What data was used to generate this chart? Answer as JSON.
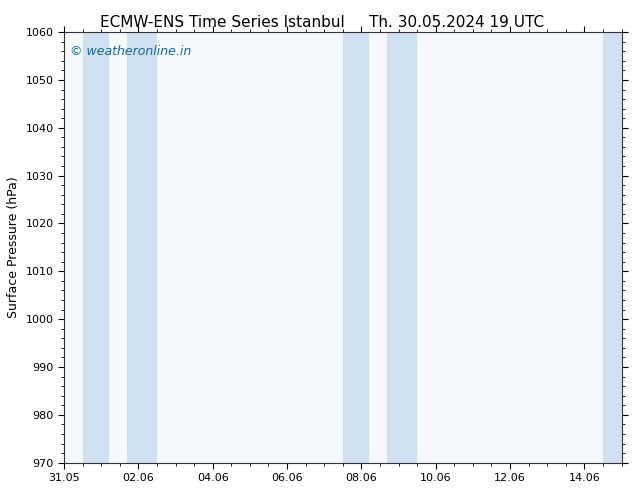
{
  "title_left": "ECMW-ENS Time Series Istanbul",
  "title_right": "Th. 30.05.2024 19 UTC",
  "ylabel": "Surface Pressure (hPa)",
  "ylim": [
    970,
    1060
  ],
  "yticks": [
    970,
    980,
    990,
    1000,
    1010,
    1020,
    1030,
    1040,
    1050,
    1060
  ],
  "xtick_labels": [
    "31.05",
    "02.06",
    "04.06",
    "06.06",
    "08.06",
    "10.06",
    "12.06",
    "14.06"
  ],
  "xtick_positions_days": [
    0,
    2,
    4,
    6,
    8,
    10,
    12,
    14
  ],
  "total_days": 15,
  "shaded_bands": [
    {
      "start_day": 0.5,
      "end_day": 1.2
    },
    {
      "start_day": 1.7,
      "end_day": 2.5
    },
    {
      "start_day": 7.5,
      "end_day": 8.2
    },
    {
      "start_day": 8.7,
      "end_day": 9.5
    },
    {
      "start_day": 14.5,
      "end_day": 15.0
    }
  ],
  "band_color": "#cfe0f0",
  "plot_bg_color": "#f5f9fd",
  "fig_bg_color": "#ffffff",
  "watermark_text": "© weatheronline.in",
  "watermark_color": "#1a6699",
  "watermark_fontsize": 9,
  "title_fontsize": 11,
  "tick_label_fontsize": 8,
  "ylabel_fontsize": 9,
  "spine_color": "#333333",
  "minor_ticks_per_major": 4
}
